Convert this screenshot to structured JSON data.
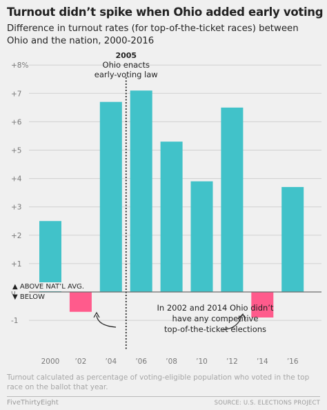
{
  "title": "Turnout didn’t spike when Ohio added early voting",
  "subtitle": "Difference in turnout rates (for top-of-the-ticket races) between Ohio and the nation, 2000-2016",
  "footnote": "Turnout calculated as percentage of voting-eligible population who voted in the top race on the ballot that year.",
  "brand": "FiveThirtyEight",
  "source": "SOURCE: U.S. ELECTIONS PROJECT",
  "colors": {
    "positive": "#41c2c9",
    "negative": "#ff5b8c",
    "grid": "#d0d0d0",
    "axis": "#6b6b6b"
  },
  "chart_data": {
    "type": "bar",
    "categories": [
      "2000",
      "’02",
      "’04",
      "’06",
      "’08",
      "’10",
      "’12",
      "’14",
      "’16"
    ],
    "values": [
      2.5,
      -0.7,
      6.7,
      7.1,
      5.3,
      3.9,
      6.5,
      -0.9,
      3.7
    ],
    "ylim": [
      -1.5,
      8.3
    ],
    "yticks": [
      -1,
      0,
      1,
      2,
      3,
      4,
      5,
      6,
      7,
      8
    ],
    "ytick_labels": [
      "-1",
      "0",
      "+1",
      "+2",
      "+3",
      "+4",
      "+5",
      "+6",
      "+7",
      "+8%"
    ],
    "zero_labels": {
      "above": "▲ ABOVE NAT’L AVG.",
      "below": "▼ BELOW"
    },
    "event": {
      "year": "2005",
      "label_lines": [
        "Ohio enacts",
        "early-voting law"
      ]
    },
    "note_lines": [
      "In 2002 and 2014 Ohio didn’t",
      "have any competitive",
      "top-of-the-ticket elections"
    ],
    "grid": true
  }
}
